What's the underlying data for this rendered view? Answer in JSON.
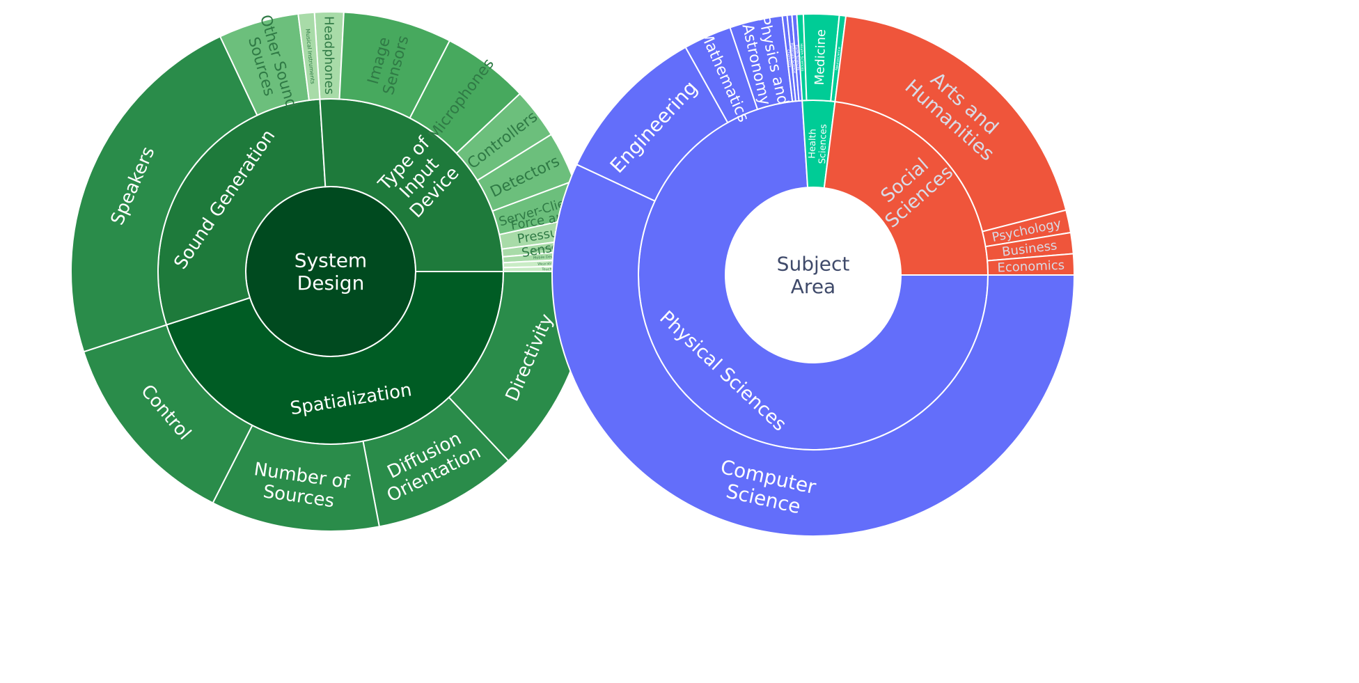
{
  "chart_data": [
    {
      "type": "sunburst",
      "colors": {
        "stroke": "#ffffff",
        "center": "#004a1f",
        "ring1": "#005c24",
        "ring1_alt": "#1e7a3b",
        "ring2_dark": "#2a8c4a",
        "ring2_mid": "#47a95e",
        "ring2_light": "#6cbf7c",
        "ring2_pale": "#a8dba8",
        "ring2_palest": "#c9ecc5",
        "text_light": "#ffffff",
        "text_dark": "#2f7a45"
      },
      "root": {
        "label": "System Design"
      },
      "inner": [
        {
          "id": "spat",
          "label": "Spatialization",
          "value": 45
        },
        {
          "id": "sound",
          "label": "Sound Generation",
          "value": 29
        },
        {
          "id": "type",
          "label": "Type of Input Device",
          "value": 26
        }
      ],
      "outer": [
        {
          "label": "Directivity",
          "value": 13,
          "parent": "spat",
          "tone": "ring2_dark"
        },
        {
          "label": "Diffusion Orientation",
          "value": 9,
          "parent": "spat",
          "tone": "ring2_dark"
        },
        {
          "label": "Number of Sources",
          "value": 10.5,
          "parent": "spat",
          "tone": "ring2_dark"
        },
        {
          "label": "Control",
          "value": 12.5,
          "parent": "spat",
          "tone": "ring2_dark"
        },
        {
          "label": "Headphones",
          "value": 2,
          "parent": "type",
          "tone": "ring2_pale"
        },
        {
          "label": "Image Sensors",
          "value": 7.5,
          "parent": "type",
          "tone": "ring2_mid"
        },
        {
          "label": "Microphones",
          "value": 6,
          "parent": "type",
          "tone": "ring2_mid"
        },
        {
          "label": "Controllers",
          "value": 3.5,
          "parent": "type",
          "tone": "ring2_light"
        },
        {
          "label": "Detectors",
          "value": 3.5,
          "parent": "type",
          "tone": "ring2_light"
        },
        {
          "label": "Server-Client",
          "value": 2.5,
          "parent": "type",
          "tone": "ring2_light"
        },
        {
          "label": "Force and Pressure Sensors",
          "value": 1.5,
          "parent": "type",
          "tone": "ring2_pale"
        },
        {
          "label": "Environmental",
          "value": 0.8,
          "parent": "type",
          "tone": "ring2_pale"
        },
        {
          "label": "Mobile Devices",
          "value": 0.6,
          "parent": "type",
          "tone": "ring2_pale"
        },
        {
          "label": "Wearables",
          "value": 0.5,
          "parent": "type",
          "tone": "ring2_palest"
        },
        {
          "label": "Touch",
          "value": 0.4,
          "parent": "type",
          "tone": "ring2_palest"
        },
        {
          "label": "Speakers",
          "value": 23,
          "parent": "sound",
          "tone": "ring2_dark"
        },
        {
          "label": "Other Sound Sources",
          "value": 5,
          "parent": "sound",
          "tone": "ring2_light"
        },
        {
          "label": "Musical Instruments",
          "value": 1,
          "parent": "sound",
          "tone": "ring2_pale"
        }
      ]
    },
    {
      "type": "sunburst",
      "colors": {
        "stroke": "#ffffff",
        "physical": "#636efa",
        "health": "#00cc96",
        "social": "#ef553b",
        "center": "#ffffff",
        "text_light": "#ffffff",
        "text_dark": "#3f4a6a",
        "text_on_social": "#d8dbe6"
      },
      "root": {
        "label": "Subject Area"
      },
      "inner": [
        {
          "id": "phys",
          "label": "Physical Sciences",
          "value": 74,
          "tone": "physical"
        },
        {
          "id": "health",
          "label": "Health Sciences",
          "value": 3,
          "tone": "health"
        },
        {
          "id": "soc",
          "label": "Social Sciences",
          "value": 23,
          "tone": "social"
        }
      ],
      "outer": [
        {
          "label": "Computer Science",
          "value": 57.5,
          "parent": "phys",
          "tone": "physical"
        },
        {
          "label": "Engineering",
          "value": 10,
          "parent": "phys",
          "tone": "physical"
        },
        {
          "label": "Mathematics",
          "value": 3,
          "parent": "phys",
          "tone": "physical"
        },
        {
          "label": "Physics and Astronomy",
          "value": 3.3,
          "parent": "phys",
          "tone": "physical"
        },
        {
          "label": "Chemistry",
          "value": 0.3,
          "parent": "phys",
          "tone": "physical"
        },
        {
          "label": "Materials Science",
          "value": 0.3,
          "parent": "phys",
          "tone": "physical"
        },
        {
          "label": "Earth Sciences",
          "value": 0.3,
          "parent": "phys",
          "tone": "physical"
        },
        {
          "label": "Health Sciences",
          "value": 0.4,
          "parent": "health",
          "tone": "health"
        },
        {
          "label": "Medicine",
          "value": 2.2,
          "parent": "health",
          "tone": "health"
        },
        {
          "label": "Neuroscience",
          "value": 0.4,
          "parent": "health",
          "tone": "health"
        },
        {
          "label": "Arts and Humanities",
          "value": 19,
          "parent": "soc",
          "tone": "social"
        },
        {
          "label": "Psychology",
          "value": 1.4,
          "parent": "soc",
          "tone": "social"
        },
        {
          "label": "Business",
          "value": 1.3,
          "parent": "soc",
          "tone": "social"
        },
        {
          "label": "Economics",
          "value": 1.3,
          "parent": "soc",
          "tone": "social"
        }
      ]
    }
  ]
}
